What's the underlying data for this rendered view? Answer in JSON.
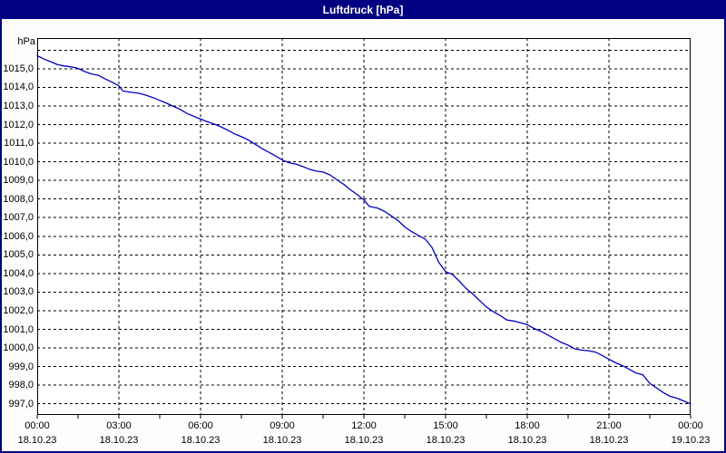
{
  "window": {
    "title": "Luftdruck [hPa]"
  },
  "colors": {
    "titlebar_bg": "#000080",
    "title_text": "#ffffff",
    "frame_border": "#000080",
    "plot_border": "#000000",
    "grid": "#000000",
    "line": "#0000c0",
    "background": "#fdfdfd",
    "plot_background": "#ffffff"
  },
  "chart_data": {
    "type": "line",
    "title": "Luftdruck [hPa]",
    "ylabel": "hPa",
    "xlabel": "",
    "legend": "none",
    "grid": "dashed",
    "ylim": [
      996.4,
      1016.65
    ],
    "xlim_hours": [
      0,
      24
    ],
    "unit_label": "hPa",
    "yticks": [
      {
        "v": 1016,
        "label": ""
      },
      {
        "v": 1015,
        "label": "1015,0"
      },
      {
        "v": 1014,
        "label": "1014,0"
      },
      {
        "v": 1013,
        "label": "1013,0"
      },
      {
        "v": 1012,
        "label": "1012,0"
      },
      {
        "v": 1011,
        "label": "1011,0"
      },
      {
        "v": 1010,
        "label": "1010,0"
      },
      {
        "v": 1009,
        "label": "1009,0"
      },
      {
        "v": 1008,
        "label": "1008,0"
      },
      {
        "v": 1007,
        "label": "1007,0"
      },
      {
        "v": 1006,
        "label": "1006,0"
      },
      {
        "v": 1005,
        "label": "1005,0"
      },
      {
        "v": 1004,
        "label": "1004,0"
      },
      {
        "v": 1003,
        "label": "1003,0"
      },
      {
        "v": 1002,
        "label": "1002,0"
      },
      {
        "v": 1001,
        "label": "1001,0"
      },
      {
        "v": 1000,
        "label": "1000,0"
      },
      {
        "v": 999,
        "label": "999,0"
      },
      {
        "v": 998,
        "label": "998,0"
      },
      {
        "v": 997,
        "label": "997,0"
      }
    ],
    "xticks": [
      {
        "h": 0,
        "time": "00:00",
        "date": "18.10.23",
        "gridline": false
      },
      {
        "h": 3,
        "time": "03:00",
        "date": "18.10.23",
        "gridline": true
      },
      {
        "h": 6,
        "time": "06:00",
        "date": "18.10.23",
        "gridline": true
      },
      {
        "h": 9,
        "time": "09:00",
        "date": "18.10.23",
        "gridline": true
      },
      {
        "h": 12,
        "time": "12:00",
        "date": "18.10.23",
        "gridline": true
      },
      {
        "h": 15,
        "time": "15:00",
        "date": "18.10.23",
        "gridline": true
      },
      {
        "h": 18,
        "time": "18:00",
        "date": "18.10.23",
        "gridline": true
      },
      {
        "h": 21,
        "time": "21:00",
        "date": "18.10.23",
        "gridline": true
      },
      {
        "h": 24,
        "time": "00:00",
        "date": "19.10.23",
        "gridline": false
      }
    ],
    "minor_xtick_step_hours": 1.5,
    "series": [
      {
        "name": "Luftdruck",
        "points": [
          [
            0,
            1015.7
          ],
          [
            0.25,
            1015.52
          ],
          [
            0.5,
            1015.38
          ],
          [
            0.75,
            1015.22
          ],
          [
            1,
            1015.15
          ],
          [
            1.25,
            1015.1
          ],
          [
            1.5,
            1015.02
          ],
          [
            1.75,
            1014.85
          ],
          [
            2,
            1014.72
          ],
          [
            2.25,
            1014.65
          ],
          [
            2.5,
            1014.45
          ],
          [
            2.75,
            1014.28
          ],
          [
            3,
            1014.08
          ],
          [
            3.15,
            1013.8
          ],
          [
            3.4,
            1013.75
          ],
          [
            3.75,
            1013.68
          ],
          [
            4,
            1013.58
          ],
          [
            4.25,
            1013.45
          ],
          [
            4.5,
            1013.3
          ],
          [
            4.75,
            1013.15
          ],
          [
            5,
            1012.98
          ],
          [
            5.25,
            1012.82
          ],
          [
            5.5,
            1012.6
          ],
          [
            5.75,
            1012.45
          ],
          [
            6,
            1012.3
          ],
          [
            6.25,
            1012.15
          ],
          [
            6.5,
            1012.03
          ],
          [
            6.75,
            1011.88
          ],
          [
            7,
            1011.7
          ],
          [
            7.25,
            1011.5
          ],
          [
            7.5,
            1011.35
          ],
          [
            7.75,
            1011.18
          ],
          [
            8,
            1010.95
          ],
          [
            8.25,
            1010.72
          ],
          [
            8.5,
            1010.52
          ],
          [
            8.75,
            1010.32
          ],
          [
            9,
            1010.1
          ],
          [
            9.25,
            1009.95
          ],
          [
            9.5,
            1009.88
          ],
          [
            9.75,
            1009.75
          ],
          [
            10,
            1009.6
          ],
          [
            10.25,
            1009.5
          ],
          [
            10.5,
            1009.45
          ],
          [
            10.75,
            1009.3
          ],
          [
            11,
            1009.05
          ],
          [
            11.25,
            1008.8
          ],
          [
            11.5,
            1008.5
          ],
          [
            11.75,
            1008.25
          ],
          [
            12,
            1007.95
          ],
          [
            12.2,
            1007.6
          ],
          [
            12.5,
            1007.52
          ],
          [
            12.75,
            1007.35
          ],
          [
            13,
            1007.1
          ],
          [
            13.25,
            1006.85
          ],
          [
            13.5,
            1006.5
          ],
          [
            13.75,
            1006.25
          ],
          [
            14,
            1006.05
          ],
          [
            14.25,
            1005.85
          ],
          [
            14.5,
            1005.4
          ],
          [
            14.75,
            1004.6
          ],
          [
            15,
            1004.1
          ],
          [
            15.25,
            1003.95
          ],
          [
            15.5,
            1003.6
          ],
          [
            15.75,
            1003.2
          ],
          [
            16,
            1002.9
          ],
          [
            16.25,
            1002.55
          ],
          [
            16.5,
            1002.2
          ],
          [
            16.75,
            1001.95
          ],
          [
            17,
            1001.75
          ],
          [
            17.25,
            1001.5
          ],
          [
            17.5,
            1001.45
          ],
          [
            17.75,
            1001.35
          ],
          [
            18,
            1001.25
          ],
          [
            18.25,
            1001.05
          ],
          [
            18.5,
            1000.9
          ],
          [
            18.75,
            1000.7
          ],
          [
            19,
            1000.5
          ],
          [
            19.25,
            1000.3
          ],
          [
            19.5,
            1000.15
          ],
          [
            19.75,
            999.95
          ],
          [
            20,
            999.88
          ],
          [
            20.25,
            999.85
          ],
          [
            20.5,
            999.78
          ],
          [
            20.75,
            999.6
          ],
          [
            21,
            999.4
          ],
          [
            21.25,
            999.2
          ],
          [
            21.5,
            999.05
          ],
          [
            21.75,
            998.85
          ],
          [
            22,
            998.65
          ],
          [
            22.25,
            998.55
          ],
          [
            22.5,
            998.1
          ],
          [
            22.75,
            997.85
          ],
          [
            23,
            997.6
          ],
          [
            23.25,
            997.4
          ],
          [
            23.5,
            997.3
          ],
          [
            23.75,
            997.15
          ],
          [
            24,
            997.0
          ]
        ]
      }
    ]
  }
}
